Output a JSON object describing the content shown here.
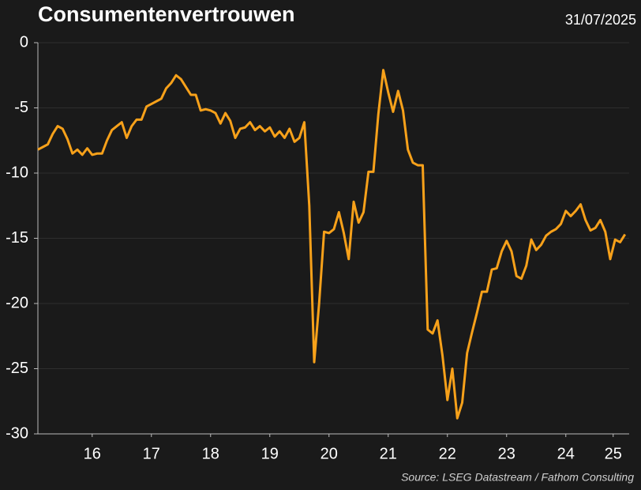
{
  "chart_data": {
    "type": "line",
    "title": "Consumentenvertrouwen",
    "date": "31/07/2025",
    "source": "Source: LSEG Datastream / Fathom Consulting",
    "x": [
      2015.583,
      2015.667,
      2015.75,
      2015.833,
      2015.917,
      2016,
      2016.083,
      2016.167,
      2016.25,
      2016.333,
      2016.417,
      2016.5,
      2016.583,
      2016.667,
      2016.75,
      2016.833,
      2016.917,
      2017,
      2017.083,
      2017.167,
      2017.25,
      2017.333,
      2017.417,
      2017.5,
      2017.583,
      2017.667,
      2017.75,
      2017.833,
      2017.917,
      2018,
      2018.083,
      2018.167,
      2018.25,
      2018.333,
      2018.417,
      2018.5,
      2018.583,
      2018.667,
      2018.75,
      2018.833,
      2018.917,
      2019,
      2019.083,
      2019.167,
      2019.25,
      2019.333,
      2019.417,
      2019.5,
      2019.583,
      2019.667,
      2019.75,
      2019.833,
      2019.917,
      2020,
      2020.083,
      2020.167,
      2020.25,
      2020.333,
      2020.417,
      2020.5,
      2020.583,
      2020.667,
      2020.75,
      2020.833,
      2020.917,
      2021,
      2021.083,
      2021.167,
      2021.25,
      2021.333,
      2021.417,
      2021.5,
      2021.583,
      2021.667,
      2021.75,
      2021.833,
      2021.917,
      2022,
      2022.083,
      2022.167,
      2022.25,
      2022.333,
      2022.417,
      2022.5,
      2022.583,
      2022.667,
      2022.75,
      2022.833,
      2022.917,
      2023,
      2023.083,
      2023.167,
      2023.25,
      2023.333,
      2023.417,
      2023.5,
      2023.583,
      2023.667,
      2023.75,
      2023.833,
      2023.917,
      2024,
      2024.083,
      2024.167,
      2024.25,
      2024.333,
      2024.417,
      2024.5,
      2024.583,
      2024.667,
      2024.75,
      2024.833,
      2024.917,
      2025,
      2025.083,
      2025.167,
      2025.25,
      2025.333,
      2025.417,
      2025.5
    ],
    "series": [
      {
        "name": "Consumentenvertrouwen",
        "color": "#f7a11a",
        "values": [
          -8.2,
          -8,
          -7.8,
          -7,
          -6.4,
          -6.6,
          -7.4,
          -8.5,
          -8.2,
          -8.6,
          -8.1,
          -8.6,
          -8.5,
          -8.5,
          -7.5,
          -6.7,
          -6.4,
          -6.1,
          -7.3,
          -6.4,
          -5.9,
          -5.9,
          -4.9,
          -4.7,
          -4.5,
          -4.3,
          -3.5,
          -3.1,
          -2.5,
          -2.8,
          -3.4,
          -4,
          -4,
          -5.2,
          -5.1,
          -5.2,
          -5.4,
          -6.2,
          -5.4,
          -6,
          -7.3,
          -6.6,
          -6.5,
          -6.1,
          -6.7,
          -6.4,
          -6.8,
          -6.5,
          -7.2,
          -6.8,
          -7.3,
          -6.6,
          -7.6,
          -7.3,
          -6.1,
          -12.5,
          -24.5,
          -20,
          -14.5,
          -14.6,
          -14.3,
          -13,
          -14.6,
          -16.6,
          -12.2,
          -13.8,
          -13,
          -9.9,
          -9.9,
          -5.5,
          -2.1,
          -3.8,
          -5.3,
          -3.7,
          -5.2,
          -8.2,
          -9.2,
          -9.4,
          -9.4,
          -22,
          -22.3,
          -21.3,
          -24,
          -27.4,
          -25,
          -28.8,
          -27.6,
          -23.8,
          -22.2,
          -20.7,
          -19.1,
          -19.1,
          -17.4,
          -17.3,
          -16,
          -15.2,
          -16,
          -17.9,
          -18.1,
          -17.1,
          -15.1,
          -15.9,
          -15.5,
          -14.8,
          -14.5,
          -14.3,
          -13.9,
          -12.9,
          -13.3,
          -12.9,
          -12.4,
          -13.6,
          -14.4,
          -14.2,
          -13.6,
          -14.5,
          -16.6,
          -15.1,
          -15.3,
          -14.7
        ]
      }
    ],
    "xlim": [
      2015.583,
      2025.57
    ],
    "xticks": [
      {
        "value": 2016.5,
        "label": "16"
      },
      {
        "value": 2017.5,
        "label": "17"
      },
      {
        "value": 2018.5,
        "label": "18"
      },
      {
        "value": 2019.5,
        "label": "19"
      },
      {
        "value": 2020.5,
        "label": "20"
      },
      {
        "value": 2021.5,
        "label": "21"
      },
      {
        "value": 2022.5,
        "label": "22"
      },
      {
        "value": 2023.5,
        "label": "23"
      },
      {
        "value": 2024.5,
        "label": "24"
      },
      {
        "value": 2025.3,
        "label": "25"
      }
    ],
    "ylim": [
      -30,
      0
    ],
    "yticks": [
      0,
      -5,
      -10,
      -15,
      -20,
      -25,
      -30
    ],
    "grid": true
  }
}
